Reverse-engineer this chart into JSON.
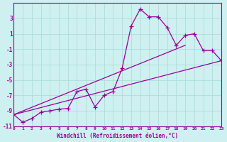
{
  "xlabel": "Windchill (Refroidissement éolien,°C)",
  "background_color": "#cff0f0",
  "grid_color": "#aadddd",
  "line_color": "#990099",
  "xlim": [
    0,
    23
  ],
  "ylim": [
    -11,
    5
  ],
  "xticks": [
    0,
    1,
    2,
    3,
    4,
    5,
    6,
    7,
    8,
    9,
    10,
    11,
    12,
    13,
    14,
    15,
    16,
    17,
    18,
    19,
    20,
    21,
    22,
    23
  ],
  "yticks": [
    -11,
    -9,
    -7,
    -5,
    -3,
    -1,
    1,
    3
  ],
  "curve_x": [
    0,
    1,
    2,
    3,
    4,
    5,
    6,
    7,
    8,
    9,
    10,
    11,
    12,
    13,
    14,
    15,
    16,
    17,
    18,
    19,
    20,
    21,
    22,
    23
  ],
  "curve_y": [
    -9.5,
    -10.5,
    -10.0,
    -9.2,
    -9.0,
    -8.8,
    -8.7,
    -6.5,
    -6.2,
    -8.5,
    -7.0,
    -6.5,
    -3.5,
    2.0,
    4.2,
    3.2,
    3.2,
    1.8,
    -0.5,
    0.8,
    1.0,
    -1.2,
    -1.2,
    -2.5
  ],
  "trend1_x": [
    0,
    23
  ],
  "trend1_y": [
    -9.5,
    -2.5
  ],
  "trend2_x": [
    0,
    19
  ],
  "trend2_y": [
    -9.5,
    -0.5
  ]
}
